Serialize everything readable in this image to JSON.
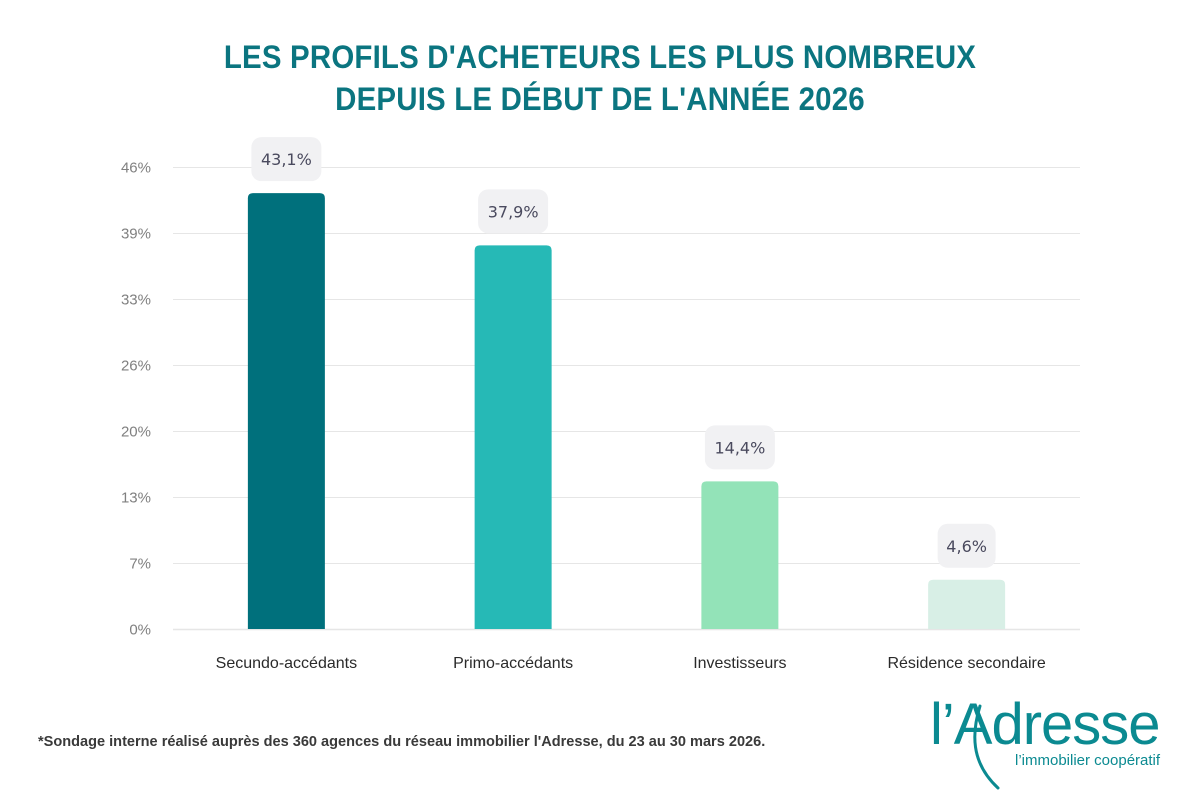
{
  "title_lines": [
    "LES PROFILS D'ACHETEURS LES PLUS NOMBREUX",
    "DEPUIS LE DÉBUT DE L'ANNÉE 2026"
  ],
  "colors": {
    "title": "#0b7580",
    "bars": [
      "#00707c",
      "#26b9b6",
      "#93e3b8",
      "#d8efe6"
    ],
    "grid": "#e6e6e6",
    "label_pill": "#f1f1f3",
    "label_text": "#4a4a5e",
    "brand": "#0b8a91"
  },
  "chart_data": {
    "type": "bar",
    "title": "LES PROFILS D'ACHETEURS LES PLUS NOMBREUX DEPUIS LE DÉBUT DE L'ANNÉE 2026",
    "categories": [
      "Secundo-accédants",
      "Primo-accédants",
      "Investisseurs",
      "Résidence secondaire"
    ],
    "values": [
      43.1,
      37.9,
      14.4,
      4.6
    ],
    "value_labels": [
      "43,1%",
      "37,9%",
      "14,4%",
      "4,6%"
    ],
    "xlabel": "",
    "ylabel": "",
    "ylim": [
      0,
      46
    ],
    "yticks": [
      0,
      6.57,
      13.14,
      19.71,
      26.29,
      32.86,
      39.43,
      46
    ],
    "ytick_labels": [
      "0%",
      "7%",
      "13%",
      "20%",
      "26%",
      "33%",
      "39%",
      "46%"
    ],
    "grid": true,
    "legend": "none"
  },
  "footnote": "*Sondage interne réalisé auprès des 360 agences du réseau immobilier l'Adresse, du 23 au 30 mars 2026.",
  "logo": {
    "name": "l’Adresse",
    "tagline": "l’immobilier coopératif"
  }
}
